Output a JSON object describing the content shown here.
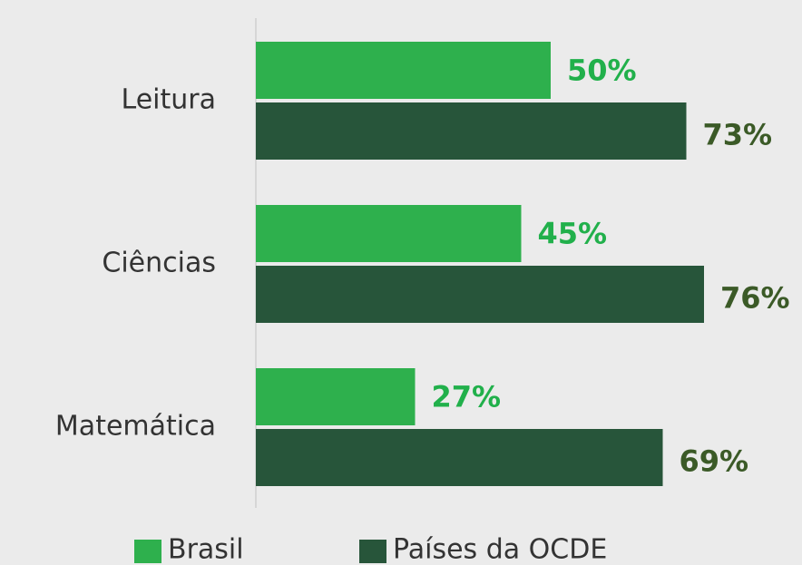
{
  "chart_data": {
    "type": "bar",
    "orientation": "horizontal",
    "categories": [
      "Leitura",
      "Ciências",
      "Matemática"
    ],
    "series": [
      {
        "name": "Brasil",
        "color": "#2eb04d",
        "label_color": "#21b04b",
        "values": [
          50,
          45,
          27
        ],
        "value_labels": [
          "50%",
          "45%",
          "27%"
        ]
      },
      {
        "name": "Países da OCDE",
        "color": "#27553a",
        "label_color": "#3b5a27",
        "values": [
          73,
          76,
          69
        ],
        "value_labels": [
          "73%",
          "76%",
          "69%"
        ]
      }
    ]
  }
}
